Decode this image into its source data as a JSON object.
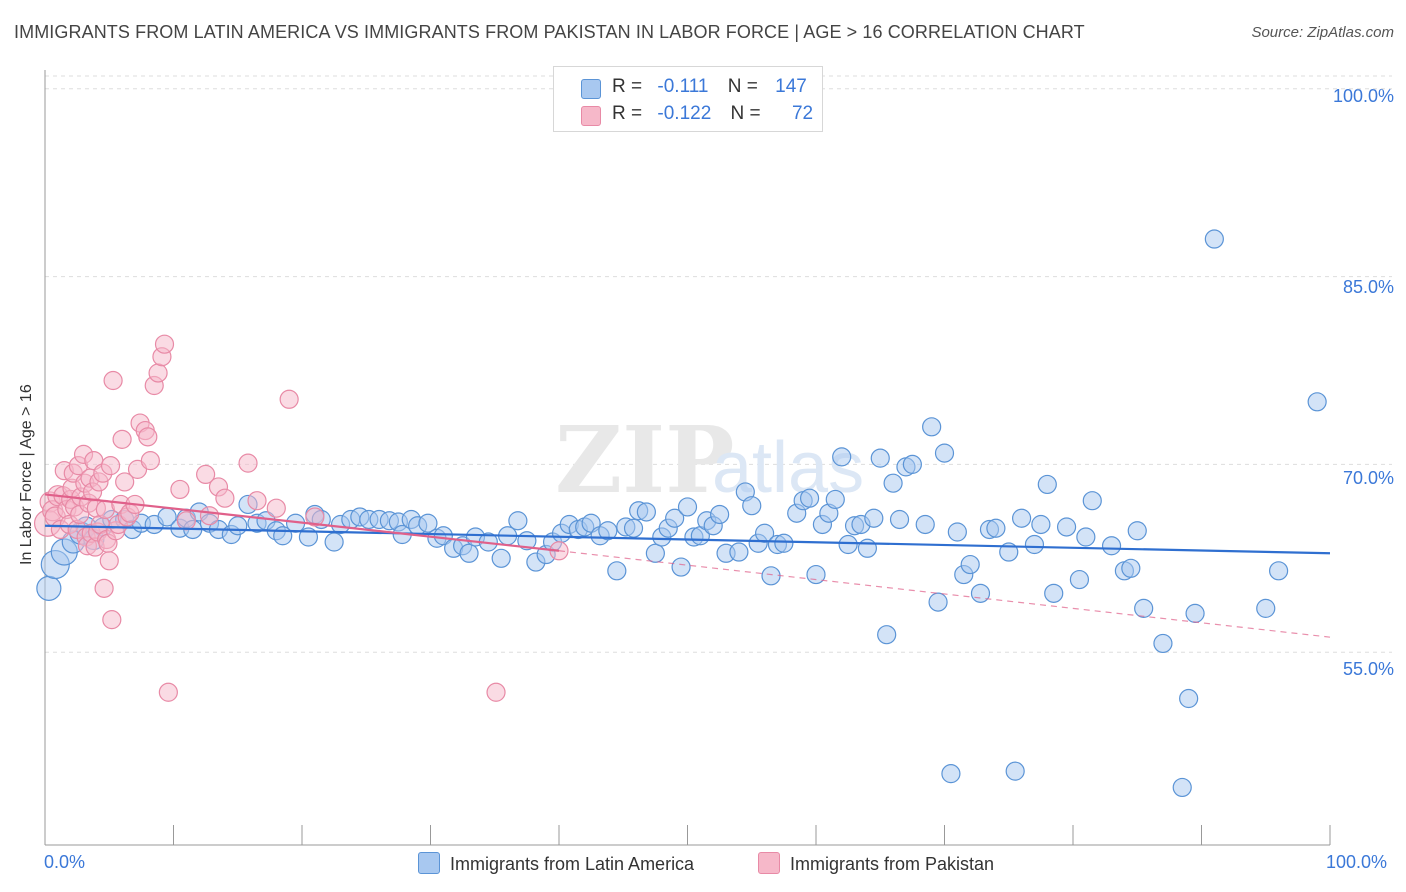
{
  "title": "IMMIGRANTS FROM LATIN AMERICA VS IMMIGRANTS FROM PAKISTAN IN LABOR FORCE | AGE > 16 CORRELATION CHART",
  "source": "Source: ZipAtlas.com",
  "legend_top": {
    "rows": [
      {
        "r_label": "R =",
        "r_value": "-0.111",
        "n_label": "N =",
        "n_value": "147"
      },
      {
        "r_label": "R =",
        "r_value": "-0.122",
        "n_label": "N =",
        "n_value": "72"
      }
    ]
  },
  "colors": {
    "blue_fill": "#a8c8f0",
    "blue_stroke": "#5b94d6",
    "blue_line": "#2f6fd0",
    "pink_fill": "#f6b8c9",
    "pink_stroke": "#e88aa6",
    "pink_line": "#e0608a",
    "axis_text": "#3b78d8",
    "grid": "#dddddd"
  },
  "chart_data": {
    "type": "scatter",
    "title": "IMMIGRANTS FROM LATIN AMERICA VS IMMIGRANTS FROM PAKISTAN IN LABOR FORCE | AGE > 16 CORRELATION CHART",
    "xlabel": "",
    "ylabel": "In Labor Force | Age > 16",
    "xlim": [
      0,
      100
    ],
    "ylim": [
      40,
      101.5
    ],
    "x_tick_labels": [
      "0.0%",
      "100.0%"
    ],
    "y_ticks": [
      55,
      70,
      85,
      100
    ],
    "y_tick_labels": [
      "55.0%",
      "70.0%",
      "85.0%",
      "100.0%"
    ],
    "grid": true,
    "legend_position": "bottom",
    "series": [
      {
        "name": "Immigrants from Latin America",
        "color": "blue",
        "trend": {
          "x": [
            0,
            100
          ],
          "y": [
            65.1,
            62.9
          ]
        },
        "points": [
          [
            0.3,
            60.1,
            12
          ],
          [
            0.8,
            62,
            14
          ],
          [
            1.5,
            63,
            13
          ],
          [
            2.2,
            63.8,
            11
          ],
          [
            2.8,
            64.5,
            11
          ],
          [
            3.2,
            65,
            10
          ],
          [
            3.8,
            64,
            10
          ],
          [
            4.5,
            65,
            9
          ],
          [
            5.2,
            65.6,
            9
          ],
          [
            6.2,
            65.6,
            9
          ],
          [
            6.8,
            64.8,
            9
          ],
          [
            7.5,
            65.3,
            9
          ],
          [
            8.5,
            65.2,
            9
          ],
          [
            9.5,
            65.8,
            9
          ],
          [
            10.5,
            64.9,
            9
          ],
          [
            11,
            65.7,
            9
          ],
          [
            11.5,
            64.8,
            9
          ],
          [
            12,
            66.2,
            9
          ],
          [
            12.8,
            65.3,
            9
          ],
          [
            13.5,
            64.8,
            9
          ],
          [
            14.5,
            64.4,
            9
          ],
          [
            15,
            65.1,
            9
          ],
          [
            15.8,
            66.8,
            9
          ],
          [
            16.5,
            65.3,
            9
          ],
          [
            17.2,
            65.5,
            9
          ],
          [
            18,
            64.7,
            9
          ],
          [
            18.5,
            64.3,
            9
          ],
          [
            19.5,
            65.3,
            9
          ],
          [
            20.5,
            64.2,
            9
          ],
          [
            21,
            66,
            9
          ],
          [
            21.5,
            65.6,
            9
          ],
          [
            22.5,
            63.8,
            9
          ],
          [
            23,
            65.2,
            9
          ],
          [
            23.8,
            65.6,
            9
          ],
          [
            24.5,
            65.8,
            9
          ],
          [
            25.2,
            65.6,
            9
          ],
          [
            26,
            65.6,
            9
          ],
          [
            26.8,
            65.5,
            9
          ],
          [
            27.5,
            65.4,
            9
          ],
          [
            27.8,
            64.4,
            9
          ],
          [
            28.5,
            65.6,
            9
          ],
          [
            29,
            65.1,
            9
          ],
          [
            29.8,
            65.3,
            9
          ],
          [
            30.5,
            64.1,
            9
          ],
          [
            31,
            64.3,
            9
          ],
          [
            31.8,
            63.3,
            9
          ],
          [
            32.5,
            63.5,
            9
          ],
          [
            33,
            62.9,
            9
          ],
          [
            33.5,
            64.2,
            9
          ],
          [
            34.5,
            63.8,
            9
          ],
          [
            35.5,
            62.5,
            9
          ],
          [
            36,
            64.3,
            9
          ],
          [
            36.8,
            65.5,
            9
          ],
          [
            37.5,
            63.9,
            9
          ],
          [
            38.2,
            62.2,
            9
          ],
          [
            39,
            62.8,
            9
          ],
          [
            39.5,
            63.8,
            9
          ],
          [
            40.2,
            64.5,
            9
          ],
          [
            40.8,
            65.2,
            9
          ],
          [
            41.5,
            64.8,
            9
          ],
          [
            42,
            65,
            9
          ],
          [
            42.5,
            65.3,
            9
          ],
          [
            43.2,
            64.3,
            9
          ],
          [
            43.8,
            64.7,
            9
          ],
          [
            44.5,
            61.5,
            9
          ],
          [
            45.2,
            65,
            9
          ],
          [
            45.8,
            64.9,
            9
          ],
          [
            46.2,
            66.3,
            9
          ],
          [
            46.8,
            66.2,
            9
          ],
          [
            47.5,
            62.9,
            9
          ],
          [
            48,
            64.2,
            9
          ],
          [
            48.5,
            64.9,
            9
          ],
          [
            49,
            65.7,
            9
          ],
          [
            49.5,
            61.8,
            9
          ],
          [
            50,
            66.6,
            9
          ],
          [
            50.5,
            64.2,
            9
          ],
          [
            51,
            64.3,
            9
          ],
          [
            51.5,
            65.5,
            9
          ],
          [
            52,
            65.1,
            9
          ],
          [
            52.5,
            66,
            9
          ],
          [
            53,
            62.9,
            9
          ],
          [
            54,
            63,
            9
          ],
          [
            54.5,
            67.8,
            9
          ],
          [
            55,
            66.7,
            9
          ],
          [
            55.5,
            63.7,
            9
          ],
          [
            56,
            64.5,
            9
          ],
          [
            56.5,
            61.1,
            9
          ],
          [
            57,
            63.6,
            9
          ],
          [
            57.5,
            63.7,
            9
          ],
          [
            58.5,
            66.1,
            9
          ],
          [
            59,
            67.1,
            9
          ],
          [
            59.5,
            67.3,
            9
          ],
          [
            60,
            61.2,
            9
          ],
          [
            60.5,
            65.2,
            9
          ],
          [
            61,
            66.1,
            9
          ],
          [
            61.5,
            67.2,
            9
          ],
          [
            62,
            70.6,
            9
          ],
          [
            62.5,
            63.6,
            9
          ],
          [
            63,
            65.1,
            9
          ],
          [
            63.5,
            65.2,
            9
          ],
          [
            64,
            63.3,
            9
          ],
          [
            64.5,
            65.7,
            9
          ],
          [
            65,
            70.5,
            9
          ],
          [
            65.5,
            56.4,
            9
          ],
          [
            66,
            68.5,
            9
          ],
          [
            66.5,
            65.6,
            9
          ],
          [
            67,
            69.8,
            9
          ],
          [
            67.5,
            70,
            9
          ],
          [
            68.5,
            65.2,
            9
          ],
          [
            69,
            73,
            9
          ],
          [
            69.5,
            59,
            9
          ],
          [
            70,
            70.9,
            9
          ],
          [
            70.5,
            45.3,
            9
          ],
          [
            71,
            64.6,
            9
          ],
          [
            71.5,
            61.2,
            9
          ],
          [
            72,
            62,
            9
          ],
          [
            72.8,
            59.7,
            9
          ],
          [
            73.5,
            64.8,
            9
          ],
          [
            74,
            64.9,
            9
          ],
          [
            75,
            63,
            9
          ],
          [
            75.5,
            45.5,
            9
          ],
          [
            76,
            65.7,
            9
          ],
          [
            77,
            63.6,
            9
          ],
          [
            77.5,
            65.2,
            9
          ],
          [
            78,
            68.4,
            9
          ],
          [
            78.5,
            59.7,
            9
          ],
          [
            79.5,
            65,
            9
          ],
          [
            80.5,
            60.8,
            9
          ],
          [
            81,
            64.2,
            9
          ],
          [
            81.5,
            67.1,
            9
          ],
          [
            83,
            63.5,
            9
          ],
          [
            84,
            61.5,
            9
          ],
          [
            84.5,
            61.7,
            9
          ],
          [
            85,
            64.7,
            9
          ],
          [
            85.5,
            58.5,
            9
          ],
          [
            87,
            55.7,
            9
          ],
          [
            88.5,
            44.2,
            9
          ],
          [
            89,
            51.3,
            9
          ],
          [
            89.5,
            58.1,
            9
          ],
          [
            91,
            88,
            9
          ],
          [
            95,
            58.5,
            9
          ],
          [
            96,
            61.5,
            9
          ],
          [
            99,
            75,
            9
          ]
        ]
      },
      {
        "name": "Immigrants from Pakistan",
        "color": "pink",
        "trend": {
          "x": [
            0,
            40
          ],
          "y": [
            67.6,
            63.1
          ]
        },
        "trend_dashed": {
          "x": [
            40,
            100
          ],
          "y": [
            63.1,
            56.2
          ]
        },
        "points": [
          [
            0.2,
            65.3,
            13
          ],
          [
            0.4,
            67,
            10
          ],
          [
            0.6,
            66.3,
            10
          ],
          [
            0.8,
            65.8,
            10
          ],
          [
            1,
            67.5,
            10
          ],
          [
            1.2,
            64.8,
            9
          ],
          [
            1.4,
            67.5,
            9
          ],
          [
            1.5,
            69.5,
            9
          ],
          [
            1.7,
            66.4,
            9
          ],
          [
            1.9,
            65.2,
            9
          ],
          [
            2,
            67.2,
            9
          ],
          [
            2.1,
            68.1,
            9
          ],
          [
            2.2,
            69.3,
            9
          ],
          [
            2.3,
            66.6,
            9
          ],
          [
            2.5,
            64.8,
            9
          ],
          [
            2.6,
            69.9,
            9
          ],
          [
            2.7,
            66,
            9
          ],
          [
            2.8,
            67.4,
            9
          ],
          [
            3,
            70.8,
            9
          ],
          [
            3.1,
            68.5,
            9
          ],
          [
            3.2,
            64.2,
            9
          ],
          [
            3.3,
            63.5,
            9
          ],
          [
            3.4,
            66.9,
            9
          ],
          [
            3.5,
            68.9,
            9
          ],
          [
            3.6,
            64.5,
            9
          ],
          [
            3.7,
            67.8,
            9
          ],
          [
            3.8,
            70.3,
            9
          ],
          [
            3.9,
            63.4,
            9
          ],
          [
            4,
            66.5,
            9
          ],
          [
            4.1,
            64.6,
            9
          ],
          [
            4.2,
            68.6,
            9
          ],
          [
            4.3,
            65.2,
            9
          ],
          [
            4.5,
            69.3,
            9
          ],
          [
            4.6,
            60.1,
            9
          ],
          [
            4.7,
            66.4,
            9
          ],
          [
            4.8,
            64,
            9
          ],
          [
            4.9,
            63.7,
            9
          ],
          [
            5,
            62.3,
            9
          ],
          [
            5.1,
            69.9,
            9
          ],
          [
            5.2,
            57.6,
            9
          ],
          [
            5.3,
            76.7,
            9
          ],
          [
            5.5,
            64.7,
            9
          ],
          [
            5.7,
            65.2,
            9
          ],
          [
            5.9,
            66.8,
            9
          ],
          [
            6,
            72,
            9
          ],
          [
            6.2,
            68.6,
            9
          ],
          [
            6.4,
            65.8,
            9
          ],
          [
            6.6,
            66.1,
            9
          ],
          [
            7,
            66.8,
            9
          ],
          [
            7.2,
            69.6,
            9
          ],
          [
            7.4,
            73.3,
            9
          ],
          [
            7.8,
            72.7,
            9
          ],
          [
            8,
            72.2,
            9
          ],
          [
            8.2,
            70.3,
            9
          ],
          [
            8.5,
            76.3,
            9
          ],
          [
            8.8,
            77.3,
            9
          ],
          [
            9.1,
            78.6,
            9
          ],
          [
            9.3,
            79.6,
            9
          ],
          [
            9.6,
            51.8,
            9
          ],
          [
            10.5,
            68,
            9
          ],
          [
            11,
            65.5,
            9
          ],
          [
            12.5,
            69.2,
            9
          ],
          [
            12.8,
            65.9,
            9
          ],
          [
            13.5,
            68.2,
            9
          ],
          [
            15.8,
            70.1,
            9
          ],
          [
            16.5,
            67.1,
            9
          ],
          [
            19,
            75.2,
            9
          ],
          [
            35.1,
            51.8,
            9
          ],
          [
            40,
            63.1,
            9
          ],
          [
            21,
            65.8,
            9
          ],
          [
            14,
            67.3,
            9
          ],
          [
            18,
            66.5,
            9
          ]
        ]
      }
    ]
  }
}
